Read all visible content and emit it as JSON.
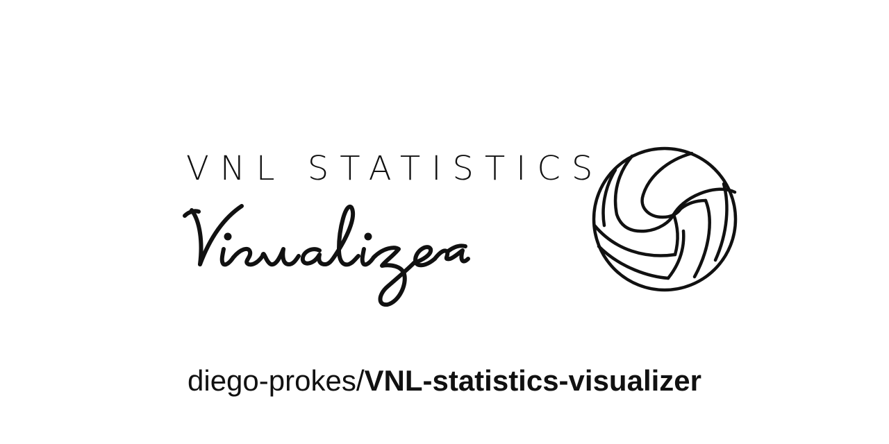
{
  "logo": {
    "title": "VNL STATISTICS",
    "script_text": "Visualizer",
    "icon": "volleyball-icon"
  },
  "repo": {
    "owner": "diego-prokes/",
    "name": "VNL-statistics-visualizer"
  },
  "colors": {
    "background": "#ffffff",
    "ink": "#111111"
  }
}
